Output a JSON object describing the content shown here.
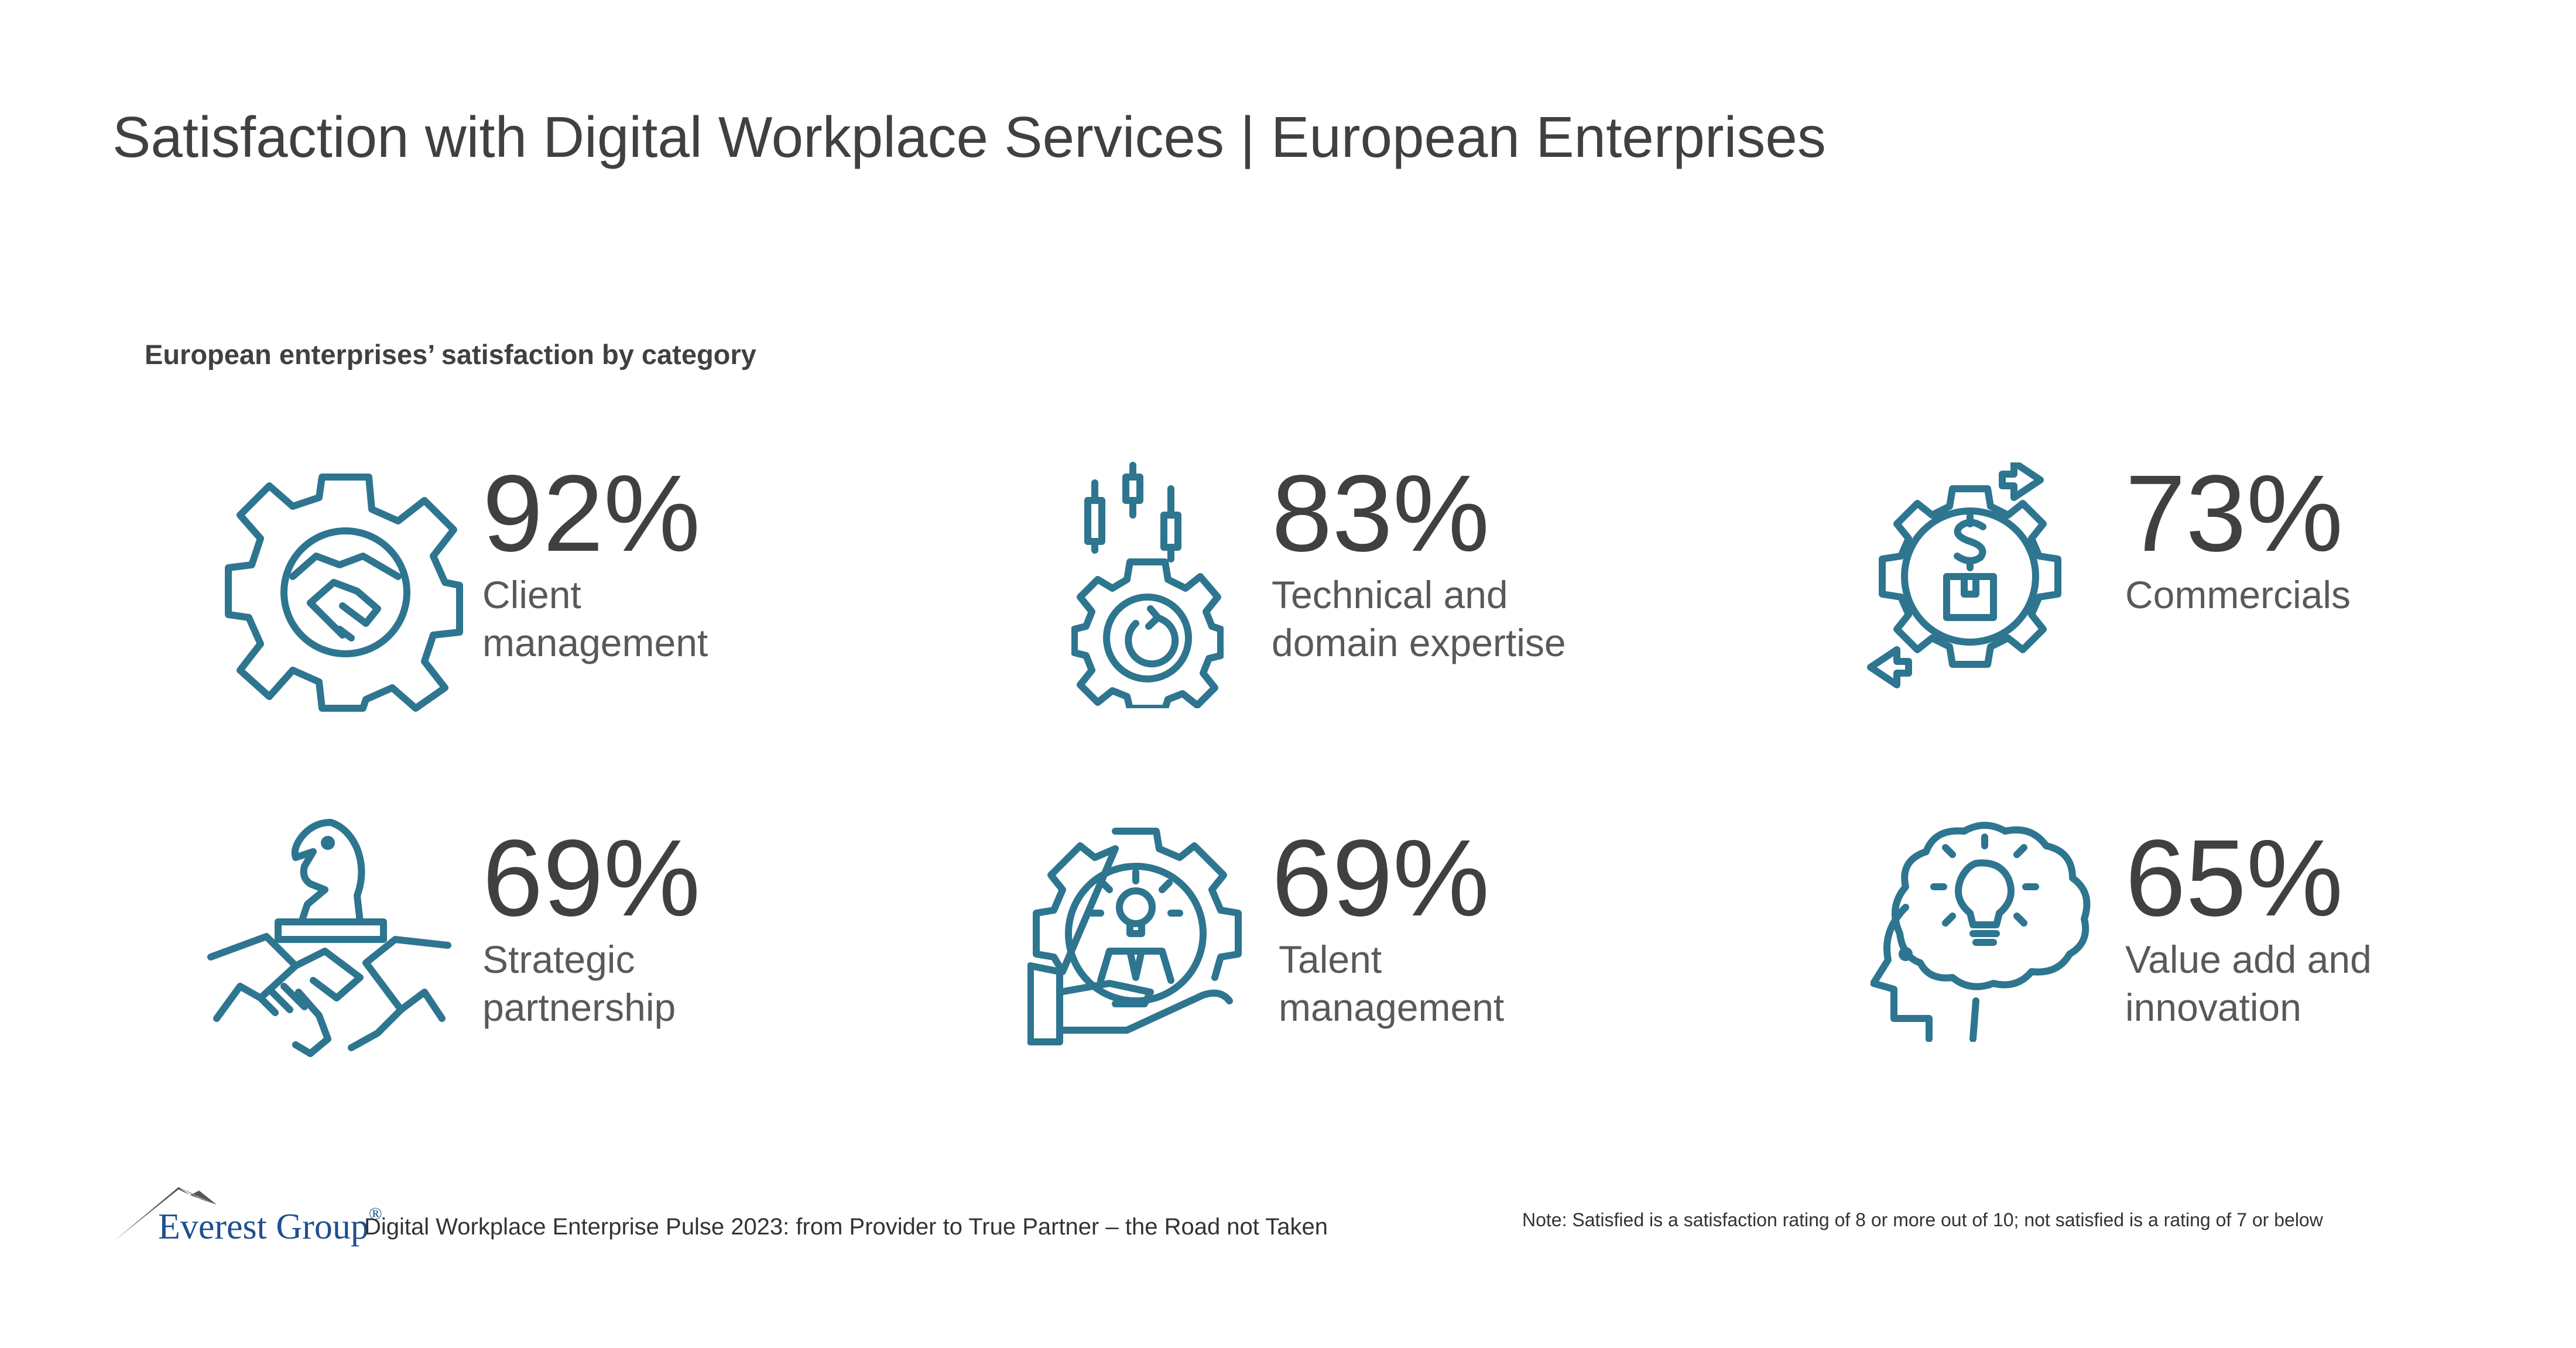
{
  "title": "Satisfaction with Digital Workplace Services | European Enterprises",
  "subtitle": "European enterprises’ satisfaction by category",
  "chart_data": {
    "type": "table",
    "title": "European enterprises’ satisfaction by category",
    "categories": [
      "Client management",
      "Technical and domain expertise",
      "Commercials",
      "Strategic partnership",
      "Talent management",
      "Value add and innovation"
    ],
    "values": [
      92,
      83,
      73,
      69,
      69,
      65
    ],
    "unit": "%"
  },
  "stats": [
    {
      "value": "92%",
      "label_lines": [
        "Client",
        "management"
      ],
      "icon": "gear-handshake-icon"
    },
    {
      "value": "83%",
      "label_lines": [
        "Technical and",
        "domain expertise"
      ],
      "icon": "gear-candlestick-icon"
    },
    {
      "value": "73%",
      "label_lines": [
        "Commercials"
      ],
      "icon": "gear-dollar-box-icon"
    },
    {
      "value": "69%",
      "label_lines": [
        "Strategic",
        "partnership"
      ],
      "icon": "chess-knight-handshake-icon"
    },
    {
      "value": "69%",
      "label_lines": [
        "Talent",
        "management"
      ],
      "icon": "gear-hand-person-icon"
    },
    {
      "value": "65%",
      "label_lines": [
        "Value add and",
        "innovation"
      ],
      "icon": "head-lightbulb-icon"
    }
  ],
  "footer": {
    "logo_text": "Everest Group",
    "logo_reg": "®",
    "source": "Digital Workplace Enterprise Pulse 2023: from Provider to True Partner – the Road not Taken",
    "note": "Note: Satisfied is a satisfaction rating of 8 or more out of 10; not satisfied is a rating of 7 or below"
  },
  "colors": {
    "icon": "#2e7590",
    "text": "#404040",
    "label": "#595959",
    "logo": "#1f4f8f"
  }
}
